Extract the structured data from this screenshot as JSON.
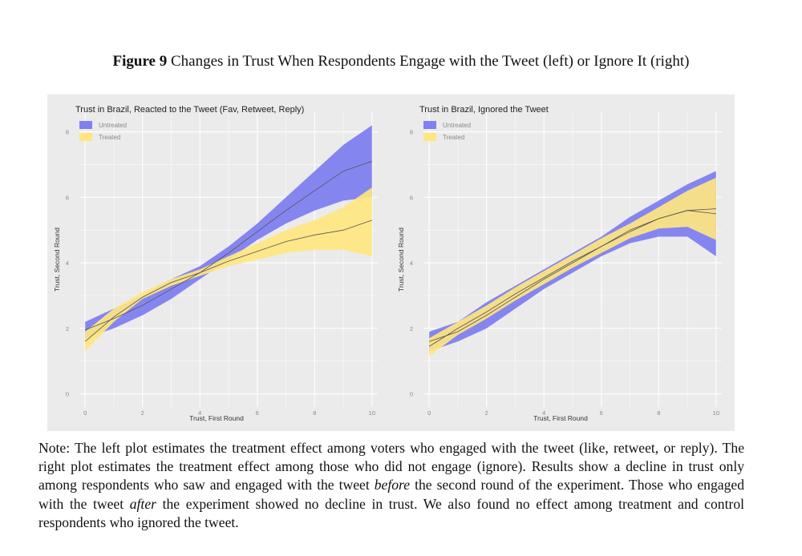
{
  "figure": {
    "label": "Figure 9",
    "caption": "Changes in Trust When Respondents Engage with the Tweet (left) or Ignore It (right)"
  },
  "colors": {
    "untreated": "#8080f0",
    "treated": "#ffe680",
    "line": "#555555",
    "panel_bg": "#ebebeb",
    "grid": "#ffffff"
  },
  "chart_data": [
    {
      "type": "area",
      "title": "Trust in Brazil, Reacted to the Tweet (Fav, Retweet, Reply)",
      "xlabel": "Trust, First Round",
      "ylabel": "Trust, Second Round",
      "xlim": [
        -0.2,
        10.2
      ],
      "ylim": [
        -0.4,
        8.6
      ],
      "xticks": [
        0,
        2,
        4,
        6,
        8,
        10
      ],
      "yticks": [
        0,
        2,
        4,
        6,
        8
      ],
      "legend": [
        "Untreated",
        "Treated"
      ],
      "series": [
        {
          "name": "Untreated",
          "x": [
            0,
            1,
            2,
            3,
            4,
            5,
            6,
            7,
            8,
            9,
            10
          ],
          "lower": [
            1.7,
            2.0,
            2.4,
            2.9,
            3.5,
            4.1,
            4.7,
            5.2,
            5.6,
            5.9,
            6.0
          ],
          "upper": [
            2.2,
            2.6,
            3.0,
            3.5,
            3.9,
            4.5,
            5.2,
            6.0,
            6.8,
            7.6,
            8.2
          ],
          "mean": [
            1.95,
            2.3,
            2.7,
            3.2,
            3.7,
            4.3,
            4.95,
            5.6,
            6.2,
            6.8,
            7.1
          ]
        },
        {
          "name": "Treated",
          "x": [
            0,
            1,
            2,
            3,
            4,
            5,
            6,
            7,
            8,
            9,
            10
          ],
          "lower": [
            1.3,
            2.2,
            2.9,
            3.3,
            3.6,
            3.9,
            4.1,
            4.3,
            4.4,
            4.4,
            4.2
          ],
          "upper": [
            1.9,
            2.6,
            3.1,
            3.5,
            3.8,
            4.2,
            4.6,
            5.0,
            5.3,
            5.7,
            6.3
          ],
          "mean": [
            1.6,
            2.35,
            2.95,
            3.4,
            3.7,
            4.05,
            4.35,
            4.65,
            4.85,
            5.0,
            5.3
          ]
        }
      ]
    },
    {
      "type": "area",
      "title": "Trust in Brazil, Ignored the Tweet",
      "xlabel": "Trust, First Round",
      "ylabel": "Trust, Second Round",
      "xlim": [
        -0.2,
        10.2
      ],
      "ylim": [
        -0.4,
        8.6
      ],
      "xticks": [
        0,
        2,
        4,
        6,
        8,
        10
      ],
      "yticks": [
        0,
        2,
        4,
        6,
        8
      ],
      "legend": [
        "Untreated",
        "Treated"
      ],
      "series": [
        {
          "name": "Untreated",
          "x": [
            0,
            1,
            2,
            3,
            4,
            5,
            6,
            7,
            8,
            9,
            10
          ],
          "lower": [
            1.3,
            1.6,
            2.0,
            2.6,
            3.2,
            3.7,
            4.2,
            4.6,
            4.8,
            4.8,
            4.2
          ],
          "upper": [
            1.9,
            2.2,
            2.8,
            3.3,
            3.8,
            4.3,
            4.8,
            5.4,
            5.9,
            6.4,
            6.8
          ],
          "mean": [
            1.6,
            1.9,
            2.4,
            2.95,
            3.5,
            4.0,
            4.5,
            5.0,
            5.35,
            5.6,
            5.5
          ]
        },
        {
          "name": "Treated",
          "x": [
            0,
            1,
            2,
            3,
            4,
            5,
            6,
            7,
            8,
            9,
            10
          ],
          "lower": [
            1.15,
            1.8,
            2.3,
            2.85,
            3.35,
            3.85,
            4.3,
            4.75,
            5.05,
            5.1,
            4.7
          ],
          "upper": [
            1.7,
            2.2,
            2.7,
            3.25,
            3.75,
            4.25,
            4.75,
            5.2,
            5.7,
            6.2,
            6.6
          ],
          "mean": [
            1.45,
            2.0,
            2.5,
            3.05,
            3.55,
            4.05,
            4.5,
            4.95,
            5.35,
            5.6,
            5.65
          ]
        }
      ]
    }
  ],
  "note": {
    "part1": "Note: The left plot estimates the treatment effect among voters who engaged with the tweet (like, retweet, or reply). The right plot estimates the treatment effect among those who did not engage (ignore). Results show a decline in trust only among respondents who saw and engaged with the tweet ",
    "em1": "before",
    "part2": " the second round of the experiment. Those who engaged with the tweet ",
    "em2": "after",
    "part3": " the experiment showed no decline in trust. We also found no effect among treatment and control respondents who ignored the tweet."
  }
}
